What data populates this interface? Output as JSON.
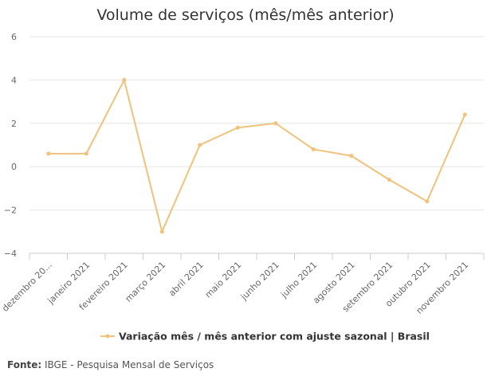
{
  "chart_data": {
    "type": "line",
    "title": "Volume de serviços (mês/mês anterior)",
    "categories": [
      "dezembro 20...",
      "janeiro 2021",
      "fevereiro 2021",
      "março 2021",
      "abril 2021",
      "maio 2021",
      "junho 2021",
      "julho 2021",
      "agosto 2021",
      "setembro 2021",
      "outubro 2021",
      "novembro 2021"
    ],
    "series": [
      {
        "name": "Variação mês / mês anterior com ajuste sazonal | Brasil",
        "values": [
          0.6,
          0.6,
          4.0,
          -3.0,
          1.0,
          1.8,
          2.0,
          0.8,
          0.5,
          -0.6,
          -1.6,
          2.4
        ],
        "color": "#f0c27b"
      }
    ],
    "yticks": [
      "6",
      "4",
      "2",
      "0",
      "−2",
      "−4"
    ],
    "ylim": [
      -4,
      6
    ],
    "grid": true,
    "legend_position": "bottom"
  },
  "source": {
    "label": "Fonte:",
    "text": "IBGE - Pesquisa Mensal de Serviços"
  }
}
